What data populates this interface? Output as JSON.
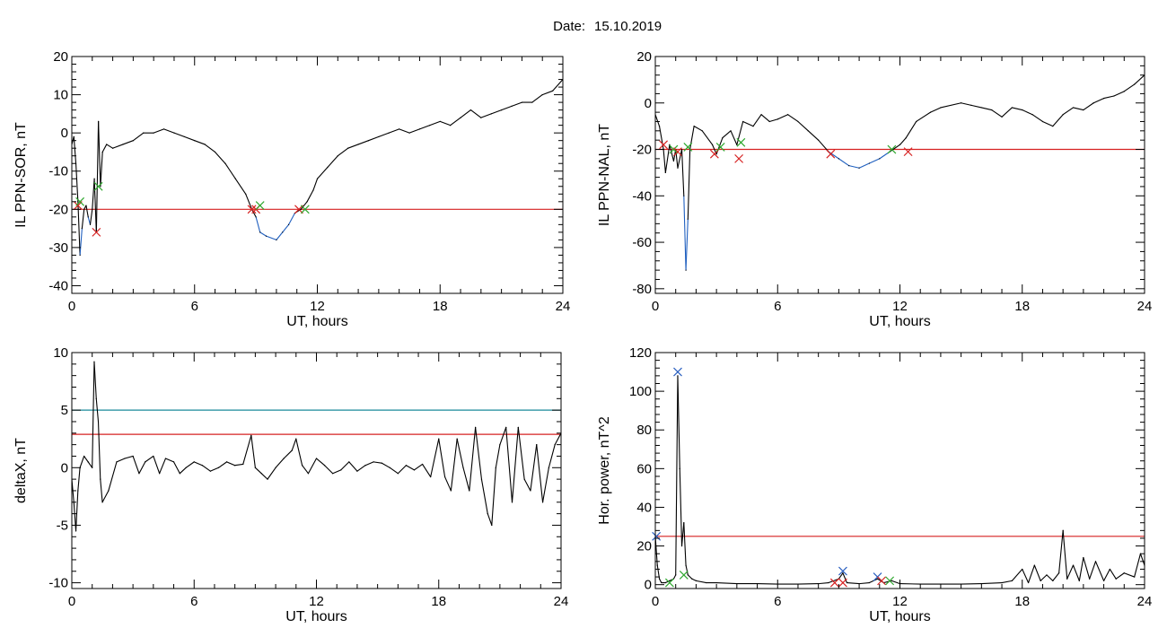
{
  "figure": {
    "title_prefix": "Date:",
    "title_date": "15.10.2019"
  },
  "colors": {
    "trace": "#000000",
    "below_threshold_trace": "#1f5fbf",
    "threshold_red": "#d62020",
    "threshold_teal": "#1a8a9a",
    "marker_red": "#d62020",
    "marker_green": "#2ea82e",
    "marker_blue": "#2a5fc0"
  },
  "chart_data": [
    {
      "type": "line",
      "id": "sor",
      "xlabel": "UT, hours",
      "ylabel": "IL PPN-SOR, nT",
      "xlim": [
        0,
        24
      ],
      "ylim": [
        -42,
        20
      ],
      "xticks": [
        0,
        6,
        12,
        18,
        24
      ],
      "yticks": [
        -40,
        -30,
        -20,
        -10,
        0,
        10,
        20
      ],
      "ytick_labels": [
        "-40",
        "-30",
        "-20",
        "-10",
        "0",
        "10",
        "20"
      ],
      "thresholds": [
        {
          "value": -20,
          "color": "red"
        }
      ],
      "below_color": "blue",
      "series_points": [
        [
          0,
          -3
        ],
        [
          0.1,
          -1
        ],
        [
          0.2,
          -8
        ],
        [
          0.3,
          -18
        ],
        [
          0.4,
          -32
        ],
        [
          0.5,
          -25
        ],
        [
          0.6,
          -20
        ],
        [
          0.7,
          -19
        ],
        [
          0.8,
          -22
        ],
        [
          0.9,
          -24
        ],
        [
          1.0,
          -20
        ],
        [
          1.1,
          -12
        ],
        [
          1.2,
          -26
        ],
        [
          1.3,
          3
        ],
        [
          1.4,
          -14
        ],
        [
          1.5,
          -5
        ],
        [
          1.7,
          -3
        ],
        [
          2.0,
          -4
        ],
        [
          2.5,
          -3
        ],
        [
          3.0,
          -2
        ],
        [
          3.5,
          0
        ],
        [
          4.0,
          0
        ],
        [
          4.5,
          1
        ],
        [
          5.0,
          0
        ],
        [
          5.5,
          -1
        ],
        [
          6.0,
          -2
        ],
        [
          6.5,
          -3
        ],
        [
          7.0,
          -5
        ],
        [
          7.5,
          -8
        ],
        [
          8.0,
          -12
        ],
        [
          8.5,
          -16
        ],
        [
          8.8,
          -20
        ],
        [
          9.0,
          -22
        ],
        [
          9.2,
          -26
        ],
        [
          9.5,
          -27
        ],
        [
          10.0,
          -28
        ],
        [
          10.3,
          -26
        ],
        [
          10.6,
          -24
        ],
        [
          10.9,
          -21
        ],
        [
          11.2,
          -20
        ],
        [
          11.5,
          -18
        ],
        [
          11.8,
          -15
        ],
        [
          12.0,
          -12
        ],
        [
          12.5,
          -9
        ],
        [
          13.0,
          -6
        ],
        [
          13.5,
          -4
        ],
        [
          14.0,
          -3
        ],
        [
          14.5,
          -2
        ],
        [
          15.0,
          -1
        ],
        [
          15.5,
          0
        ],
        [
          16.0,
          1
        ],
        [
          16.5,
          0
        ],
        [
          17.0,
          1
        ],
        [
          17.5,
          2
        ],
        [
          18.0,
          3
        ],
        [
          18.5,
          2
        ],
        [
          19.0,
          4
        ],
        [
          19.5,
          6
        ],
        [
          20.0,
          4
        ],
        [
          20.5,
          5
        ],
        [
          21.0,
          6
        ],
        [
          21.5,
          7
        ],
        [
          22.0,
          8
        ],
        [
          22.5,
          8
        ],
        [
          23.0,
          10
        ],
        [
          23.5,
          11
        ],
        [
          24.0,
          14
        ]
      ],
      "markers": [
        {
          "x": 0.3,
          "y": -19,
          "color": "red"
        },
        {
          "x": 0.4,
          "y": -18,
          "color": "green"
        },
        {
          "x": 1.2,
          "y": -26,
          "color": "red"
        },
        {
          "x": 1.3,
          "y": -14,
          "color": "green"
        },
        {
          "x": 8.8,
          "y": -20,
          "color": "red"
        },
        {
          "x": 9.0,
          "y": -20,
          "color": "red"
        },
        {
          "x": 9.2,
          "y": -19,
          "color": "green"
        },
        {
          "x": 11.1,
          "y": -20,
          "color": "red"
        },
        {
          "x": 11.4,
          "y": -20,
          "color": "green"
        }
      ]
    },
    {
      "type": "line",
      "id": "nal",
      "xlabel": "UT, hours",
      "ylabel": "IL PPN-NAL, nT",
      "xlim": [
        0,
        24
      ],
      "ylim": [
        -82,
        20
      ],
      "xticks": [
        0,
        6,
        12,
        18,
        24
      ],
      "yticks": [
        -80,
        -60,
        -40,
        -20,
        0,
        20
      ],
      "ytick_labels": [
        "-80",
        "-60",
        "-40",
        "-20",
        "0",
        "20"
      ],
      "thresholds": [
        {
          "value": -20,
          "color": "red"
        }
      ],
      "below_color": "blue",
      "series_points": [
        [
          0,
          -5
        ],
        [
          0.2,
          -10
        ],
        [
          0.4,
          -20
        ],
        [
          0.5,
          -30
        ],
        [
          0.7,
          -18
        ],
        [
          0.9,
          -25
        ],
        [
          1.0,
          -20
        ],
        [
          1.1,
          -28
        ],
        [
          1.3,
          -20
        ],
        [
          1.4,
          -40
        ],
        [
          1.5,
          -72
        ],
        [
          1.6,
          -50
        ],
        [
          1.7,
          -20
        ],
        [
          1.9,
          -10
        ],
        [
          2.3,
          -12
        ],
        [
          2.8,
          -18
        ],
        [
          3.0,
          -22
        ],
        [
          3.3,
          -15
        ],
        [
          3.7,
          -12
        ],
        [
          4.0,
          -18
        ],
        [
          4.3,
          -8
        ],
        [
          4.8,
          -10
        ],
        [
          5.2,
          -5
        ],
        [
          5.6,
          -8
        ],
        [
          6.0,
          -7
        ],
        [
          6.5,
          -5
        ],
        [
          7.0,
          -8
        ],
        [
          7.5,
          -12
        ],
        [
          8.0,
          -16
        ],
        [
          8.5,
          -21
        ],
        [
          9.0,
          -24
        ],
        [
          9.5,
          -27
        ],
        [
          10.0,
          -28
        ],
        [
          10.5,
          -26
        ],
        [
          11.0,
          -24
        ],
        [
          11.5,
          -21
        ],
        [
          12.0,
          -18
        ],
        [
          12.3,
          -15
        ],
        [
          12.8,
          -8
        ],
        [
          13.5,
          -4
        ],
        [
          14.0,
          -2
        ],
        [
          15.0,
          0
        ],
        [
          15.5,
          -1
        ],
        [
          16.0,
          -2
        ],
        [
          16.5,
          -3
        ],
        [
          17.0,
          -6
        ],
        [
          17.5,
          -2
        ],
        [
          18.0,
          -3
        ],
        [
          18.5,
          -5
        ],
        [
          19.0,
          -8
        ],
        [
          19.5,
          -10
        ],
        [
          20.0,
          -5
        ],
        [
          20.5,
          -2
        ],
        [
          21.0,
          -3
        ],
        [
          21.5,
          0
        ],
        [
          22.0,
          2
        ],
        [
          22.5,
          3
        ],
        [
          23.0,
          5
        ],
        [
          23.5,
          8
        ],
        [
          24.0,
          12
        ]
      ],
      "markers": [
        {
          "x": 0.4,
          "y": -18,
          "color": "red"
        },
        {
          "x": 0.9,
          "y": -20,
          "color": "green"
        },
        {
          "x": 1.1,
          "y": -21,
          "color": "red"
        },
        {
          "x": 1.6,
          "y": -19,
          "color": "green"
        },
        {
          "x": 2.9,
          "y": -22,
          "color": "red"
        },
        {
          "x": 3.2,
          "y": -19,
          "color": "green"
        },
        {
          "x": 4.1,
          "y": -24,
          "color": "red"
        },
        {
          "x": 4.2,
          "y": -17,
          "color": "green"
        },
        {
          "x": 8.6,
          "y": -22,
          "color": "red"
        },
        {
          "x": 11.6,
          "y": -20,
          "color": "green"
        },
        {
          "x": 12.4,
          "y": -21,
          "color": "red"
        }
      ]
    },
    {
      "type": "line",
      "id": "deltax",
      "xlabel": "UT, hours",
      "ylabel": "deltaX, nT",
      "xlim": [
        0,
        24
      ],
      "ylim": [
        -10.5,
        10
      ],
      "xticks": [
        0,
        6,
        12,
        18,
        24
      ],
      "yticks": [
        -10,
        -5,
        0,
        5,
        10
      ],
      "ytick_labels": [
        "-10",
        "-5",
        "0",
        "5",
        "10"
      ],
      "thresholds": [
        {
          "value": 5,
          "color": "teal"
        },
        {
          "value": 2.9,
          "color": "red"
        }
      ],
      "series_points": [
        [
          0,
          -1
        ],
        [
          0.1,
          -3
        ],
        [
          0.2,
          -5.5
        ],
        [
          0.3,
          -2
        ],
        [
          0.4,
          0
        ],
        [
          0.6,
          1
        ],
        [
          0.8,
          0.5
        ],
        [
          1.0,
          0
        ],
        [
          1.1,
          9.2
        ],
        [
          1.2,
          6
        ],
        [
          1.3,
          4
        ],
        [
          1.4,
          -1
        ],
        [
          1.5,
          -3
        ],
        [
          1.8,
          -2
        ],
        [
          2.2,
          0.5
        ],
        [
          2.6,
          0.8
        ],
        [
          3.0,
          1
        ],
        [
          3.3,
          -0.5
        ],
        [
          3.6,
          0.5
        ],
        [
          4.0,
          1
        ],
        [
          4.3,
          -0.5
        ],
        [
          4.6,
          0.8
        ],
        [
          5.0,
          0.5
        ],
        [
          5.3,
          -0.5
        ],
        [
          5.6,
          0
        ],
        [
          6.0,
          0.5
        ],
        [
          6.4,
          0.2
        ],
        [
          6.8,
          -0.3
        ],
        [
          7.2,
          0
        ],
        [
          7.6,
          0.5
        ],
        [
          8.0,
          0.2
        ],
        [
          8.4,
          0.3
        ],
        [
          8.8,
          2.8
        ],
        [
          9.0,
          0
        ],
        [
          9.3,
          -0.5
        ],
        [
          9.6,
          -1
        ],
        [
          10.0,
          0
        ],
        [
          10.4,
          0.8
        ],
        [
          10.8,
          1.5
        ],
        [
          11.0,
          2.5
        ],
        [
          11.3,
          0.2
        ],
        [
          11.6,
          -0.5
        ],
        [
          12.0,
          0.8
        ],
        [
          12.4,
          0.2
        ],
        [
          12.8,
          -0.5
        ],
        [
          13.2,
          -0.2
        ],
        [
          13.6,
          0.5
        ],
        [
          14.0,
          -0.3
        ],
        [
          14.4,
          0.2
        ],
        [
          14.8,
          0.5
        ],
        [
          15.2,
          0.4
        ],
        [
          15.6,
          0
        ],
        [
          16.0,
          -0.5
        ],
        [
          16.4,
          0.2
        ],
        [
          16.8,
          -0.2
        ],
        [
          17.2,
          0.3
        ],
        [
          17.6,
          -0.8
        ],
        [
          18.0,
          2.5
        ],
        [
          18.3,
          -0.8
        ],
        [
          18.6,
          -2
        ],
        [
          18.9,
          2.5
        ],
        [
          19.2,
          0
        ],
        [
          19.5,
          -2
        ],
        [
          19.8,
          3.5
        ],
        [
          20.1,
          -1
        ],
        [
          20.4,
          -4
        ],
        [
          20.6,
          -5
        ],
        [
          20.8,
          0
        ],
        [
          21.0,
          2
        ],
        [
          21.3,
          3.5
        ],
        [
          21.6,
          -3
        ],
        [
          21.9,
          3.5
        ],
        [
          22.2,
          -1
        ],
        [
          22.5,
          -2
        ],
        [
          22.8,
          2
        ],
        [
          23.1,
          -3
        ],
        [
          23.4,
          0
        ],
        [
          23.7,
          2
        ],
        [
          24.0,
          3
        ]
      ],
      "markers": []
    },
    {
      "type": "line",
      "id": "power",
      "xlabel": "UT, hours",
      "ylabel": "Hor. power, nT^2",
      "xlim": [
        0,
        24
      ],
      "ylim": [
        -2,
        120
      ],
      "xticks": [
        0,
        6,
        12,
        18,
        24
      ],
      "yticks": [
        0,
        20,
        40,
        60,
        80,
        100,
        120
      ],
      "ytick_labels": [
        "0",
        "20",
        "40",
        "60",
        "80",
        "100",
        "120"
      ],
      "thresholds": [
        {
          "value": 25,
          "color": "red"
        }
      ],
      "series_points": [
        [
          0,
          25
        ],
        [
          0.1,
          10
        ],
        [
          0.2,
          3
        ],
        [
          0.3,
          1
        ],
        [
          0.5,
          1
        ],
        [
          0.7,
          2
        ],
        [
          0.9,
          3
        ],
        [
          1.0,
          5
        ],
        [
          1.1,
          108
        ],
        [
          1.2,
          60
        ],
        [
          1.3,
          20
        ],
        [
          1.4,
          32
        ],
        [
          1.5,
          10
        ],
        [
          1.6,
          5
        ],
        [
          1.8,
          3
        ],
        [
          2.0,
          2
        ],
        [
          2.5,
          1
        ],
        [
          3.0,
          1
        ],
        [
          4.0,
          0.5
        ],
        [
          5.0,
          0.5
        ],
        [
          6.0,
          0.3
        ],
        [
          7.0,
          0.3
        ],
        [
          8.0,
          0.5
        ],
        [
          8.5,
          1
        ],
        [
          9.0,
          3
        ],
        [
          9.2,
          6
        ],
        [
          9.4,
          1
        ],
        [
          10.0,
          0.5
        ],
        [
          10.5,
          1
        ],
        [
          10.9,
          3
        ],
        [
          11.2,
          1
        ],
        [
          11.6,
          2
        ],
        [
          12.0,
          0.5
        ],
        [
          13.0,
          0.3
        ],
        [
          14.0,
          0.3
        ],
        [
          15.0,
          0.3
        ],
        [
          16.0,
          0.5
        ],
        [
          17.0,
          1
        ],
        [
          17.5,
          2
        ],
        [
          18.0,
          8
        ],
        [
          18.3,
          1
        ],
        [
          18.6,
          10
        ],
        [
          18.9,
          2
        ],
        [
          19.2,
          5
        ],
        [
          19.5,
          2
        ],
        [
          19.8,
          6
        ],
        [
          20.0,
          28
        ],
        [
          20.2,
          3
        ],
        [
          20.5,
          10
        ],
        [
          20.8,
          2
        ],
        [
          21.0,
          14
        ],
        [
          21.3,
          3
        ],
        [
          21.6,
          12
        ],
        [
          22.0,
          2
        ],
        [
          22.3,
          8
        ],
        [
          22.6,
          3
        ],
        [
          23.0,
          6
        ],
        [
          23.5,
          4
        ],
        [
          23.8,
          16
        ],
        [
          24.0,
          10
        ]
      ],
      "markers": [
        {
          "x": 0.05,
          "y": 25,
          "color": "blue"
        },
        {
          "x": 1.1,
          "y": 110,
          "color": "blue"
        },
        {
          "x": 9.2,
          "y": 7,
          "color": "blue"
        },
        {
          "x": 10.9,
          "y": 4,
          "color": "blue"
        },
        {
          "x": 1.4,
          "y": 5,
          "color": "green"
        },
        {
          "x": 0.7,
          "y": 1,
          "color": "green"
        },
        {
          "x": 8.8,
          "y": 1,
          "color": "red"
        },
        {
          "x": 9.2,
          "y": 1,
          "color": "red"
        },
        {
          "x": 11.1,
          "y": 2,
          "color": "red"
        },
        {
          "x": 11.5,
          "y": 2,
          "color": "green"
        }
      ]
    }
  ]
}
